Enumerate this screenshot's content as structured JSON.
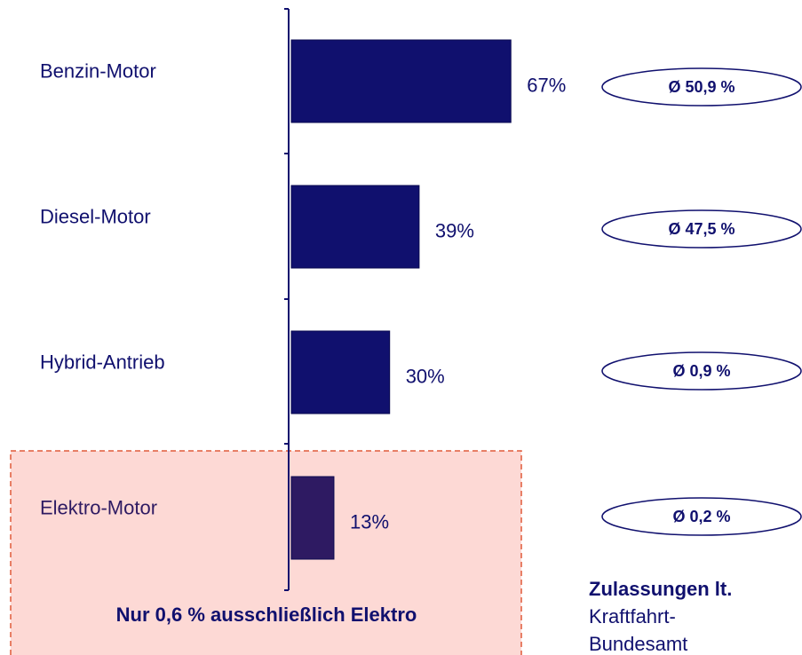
{
  "chart_data": {
    "type": "barh",
    "categories": [
      "Benzin-Motor",
      "Diesel-Motor",
      "Hybrid-Antrieb",
      "Elektro-Motor"
    ],
    "values": [
      67,
      39,
      30,
      13
    ],
    "value_labels": [
      "67%",
      "39%",
      "30%",
      "13%"
    ],
    "colors": [
      "#10106e",
      "#10106e",
      "#10106e",
      "#2e1a62"
    ],
    "xlim": [
      0,
      100
    ],
    "averages": [
      "Ø 50,9 %",
      "Ø 47,5 %",
      "Ø 0,9 %",
      "Ø 0,2 %"
    ],
    "highlight": {
      "category": "Elektro-Motor",
      "text": "Nur 0,6 % ausschließlich Elektro"
    },
    "source": [
      "Zulassungen lt.",
      "Kraftfahrt-",
      "Bundesamt"
    ]
  }
}
